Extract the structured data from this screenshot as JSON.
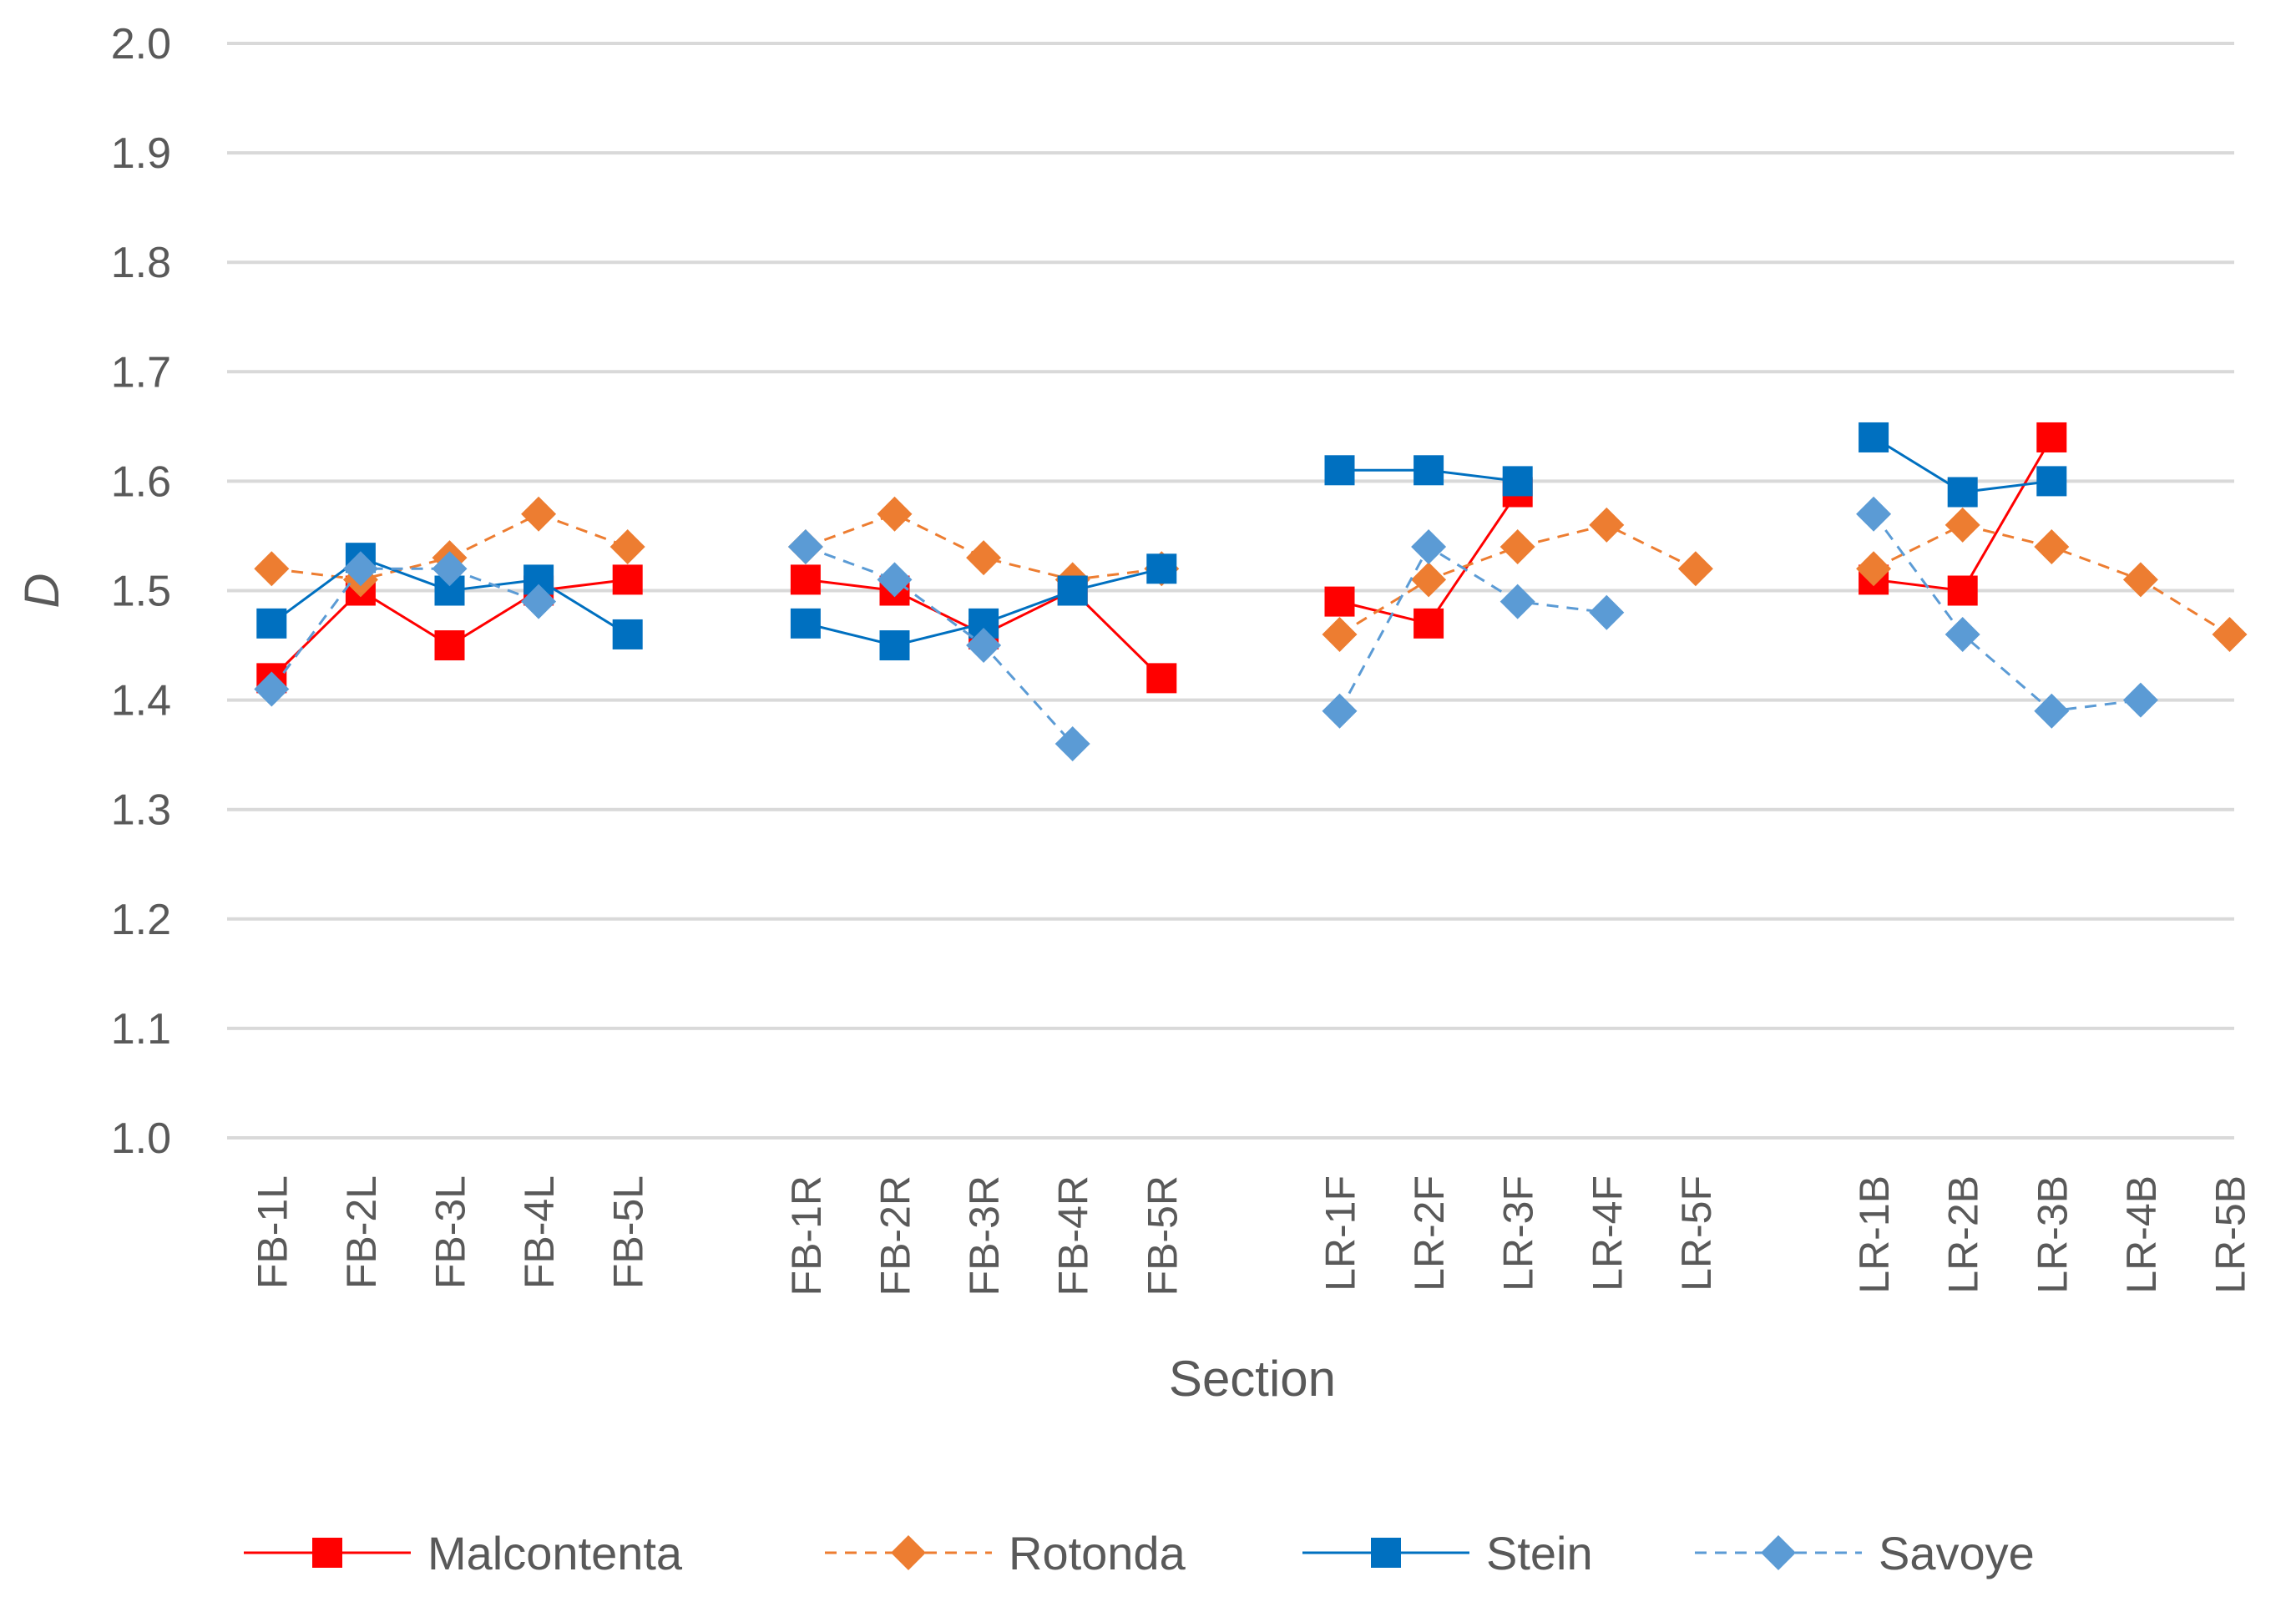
{
  "chart_data": {
    "type": "line",
    "title": "",
    "xlabel": "Section",
    "ylabel": "D",
    "ylim": [
      1.0,
      2.0
    ],
    "yticks": [
      "1.0",
      "1.1",
      "1.2",
      "1.3",
      "1.4",
      "1.5",
      "1.6",
      "1.7",
      "1.8",
      "1.9",
      "2.0"
    ],
    "grid": true,
    "legend_position": "bottom",
    "groups": [
      [
        "FB-1L",
        "FB-2L",
        "FB-3L",
        "FB-4L",
        "FB-5L"
      ],
      [
        "FB-1R",
        "FB-2R",
        "FB-3R",
        "FB-4R",
        "FB-5R"
      ],
      [
        "LR-1F",
        "LR-2F",
        "LR-3F",
        "LR-4F",
        "LR-5F"
      ],
      [
        "LR-1B",
        "LR-2B",
        "LR-3B",
        "LR-4B",
        "LR-5B"
      ]
    ],
    "categories": [
      "FB-1L",
      "FB-2L",
      "FB-3L",
      "FB-4L",
      "FB-5L",
      "FB-1R",
      "FB-2R",
      "FB-3R",
      "FB-4R",
      "FB-5R",
      "LR-1F",
      "LR-2F",
      "LR-3F",
      "LR-4F",
      "LR-5F",
      "LR-1B",
      "LR-2B",
      "LR-3B",
      "LR-4B",
      "LR-5B"
    ],
    "series": [
      {
        "name": "Malcontenta",
        "color": "#ff0000",
        "marker": "square",
        "dash": "solid",
        "values": [
          1.42,
          1.5,
          1.45,
          1.5,
          1.51,
          1.51,
          1.5,
          1.46,
          1.5,
          1.42,
          1.49,
          1.47,
          1.59,
          null,
          null,
          1.51,
          1.5,
          1.64,
          null,
          null
        ]
      },
      {
        "name": "Rotonda",
        "color": "#ed7d31",
        "marker": "diamond",
        "dash": "dashed",
        "values": [
          1.52,
          1.51,
          1.53,
          1.57,
          1.54,
          1.54,
          1.57,
          1.53,
          1.51,
          1.52,
          1.46,
          1.51,
          1.54,
          1.56,
          1.52,
          1.52,
          1.56,
          1.54,
          1.51,
          1.46
        ]
      },
      {
        "name": "Stein",
        "color": "#0070c0",
        "marker": "square",
        "dash": "solid",
        "values": [
          1.47,
          1.53,
          1.5,
          1.51,
          1.46,
          1.47,
          1.45,
          1.47,
          1.5,
          1.52,
          1.61,
          1.61,
          1.6,
          null,
          null,
          1.64,
          1.59,
          1.6,
          null,
          null
        ]
      },
      {
        "name": "Savoye",
        "color": "#5b9bd5",
        "marker": "diamond",
        "dash": "dashed",
        "values": [
          1.41,
          1.52,
          1.52,
          1.49,
          null,
          1.54,
          1.51,
          1.45,
          1.36,
          null,
          1.39,
          1.54,
          1.49,
          1.48,
          null,
          1.57,
          1.46,
          1.39,
          1.4,
          null
        ]
      }
    ]
  }
}
